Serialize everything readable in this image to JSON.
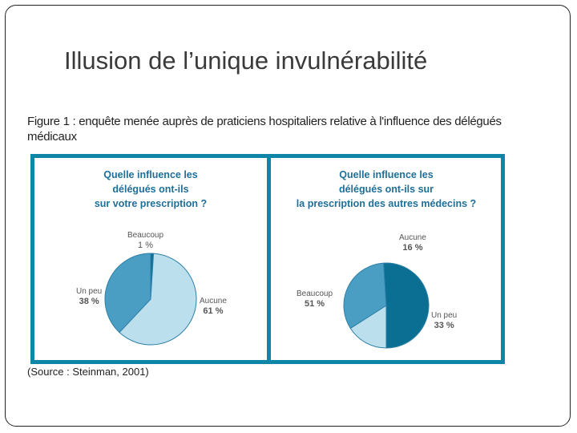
{
  "slide": {
    "title": "Illusion de l’unique invulnérabilité",
    "caption": "Figure 1 : enquête menée auprès de praticiens hospitaliers relative à l'influence des délégués médicaux",
    "source": "(Source : Steinman, 2001)"
  },
  "colors": {
    "panel_border": "#0d86a8",
    "question_text": "#1e6f99",
    "slice_aucune": "#bcdfee",
    "slice_un_peu": "#4a9ec3",
    "slice_beaucoup": "#0a6f93"
  },
  "chart_data": [
    {
      "type": "pie",
      "title": "Quelle influence les délégués ont-ils sur votre prescription ?",
      "title_lines": [
        "Quelle influence les",
        "délégués ont-ils",
        "sur votre prescription ?"
      ],
      "slices": [
        {
          "label": "Beaucoup",
          "value": 1,
          "value_label": "1 %"
        },
        {
          "label": "Aucune",
          "value": 61,
          "value_label": "61 %"
        },
        {
          "label": "Un peu",
          "value": 38,
          "value_label": "38 %"
        }
      ]
    },
    {
      "type": "pie",
      "title": "Quelle influence les délégués ont-ils sur la prescription des autres médecins ?",
      "title_lines": [
        "Quelle influence les",
        "délégués ont-ils sur",
        "la prescription des autres médecins ?"
      ],
      "slices": [
        {
          "label": "Aucune",
          "value": 16,
          "value_label": "16 %"
        },
        {
          "label": "Un peu",
          "value": 33,
          "value_label": "33 %"
        },
        {
          "label": "Beaucoup",
          "value": 51,
          "value_label": "51 %"
        }
      ]
    }
  ]
}
